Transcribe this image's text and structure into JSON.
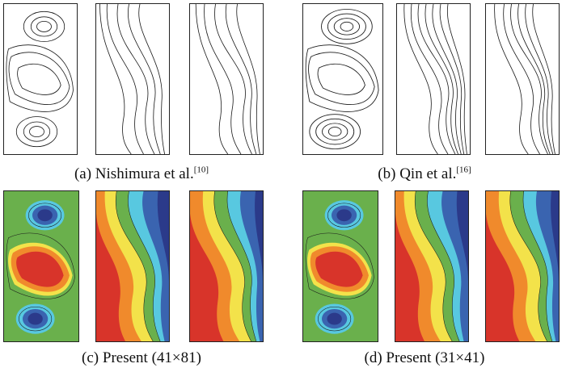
{
  "captions": {
    "a": {
      "text": "(a) Nishimura et al.",
      "ref": "[10]"
    },
    "b": {
      "text": "(b) Qin et al.",
      "ref": "[16]"
    },
    "c": {
      "text": "(c) Present (41×81)"
    },
    "d": {
      "text": "(d) Present (31×41)"
    }
  },
  "colors": {
    "line": "#1a1a1a",
    "field_green": "#6ab04c",
    "field_red": "#d8342a",
    "field_orange": "#f08a2c",
    "field_yellow": "#f3e24a",
    "field_cyan": "#58c8e0",
    "field_blue": "#3a64b0",
    "field_navy": "#2b3a8a"
  },
  "panel_types": [
    "streamline",
    "temperature",
    "isotherm"
  ]
}
